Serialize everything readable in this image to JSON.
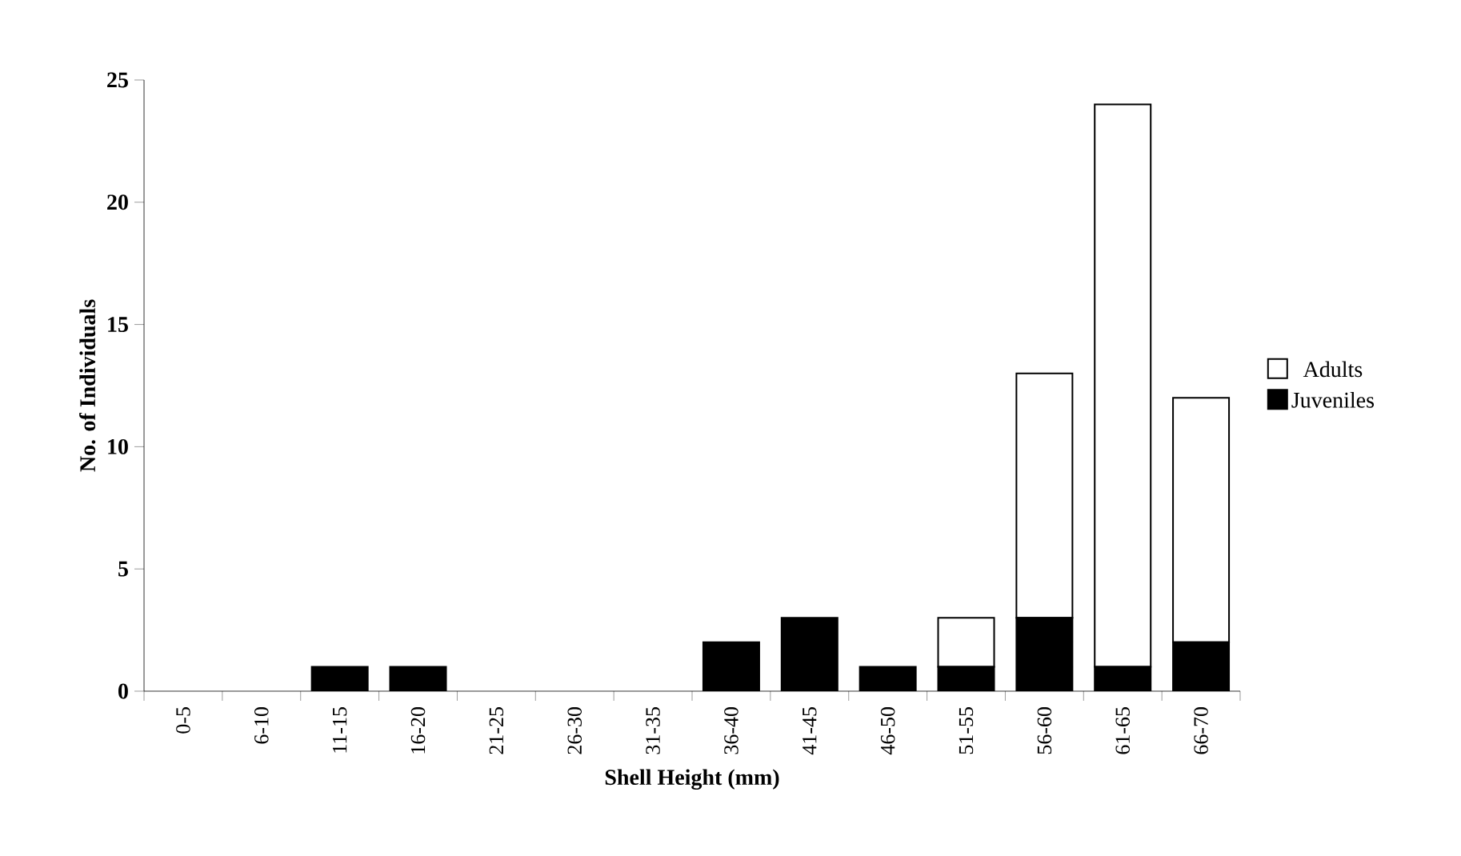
{
  "chart_data": {
    "type": "bar",
    "stacked": true,
    "xlabel": "Shell Height (mm)",
    "ylabel": "No. of Individuals",
    "categories": [
      "0-5",
      "6-10",
      "11-15",
      "16-20",
      "21-25",
      "26-30",
      "31-35",
      "36-40",
      "41-45",
      "46-50",
      "51-55",
      "56-60",
      "61-65",
      "66-70"
    ],
    "series": [
      {
        "name": "Juveniles",
        "color": "#000000",
        "values": [
          0,
          0,
          1,
          1,
          0,
          0,
          0,
          2,
          3,
          1,
          1,
          3,
          1,
          2
        ]
      },
      {
        "name": "Adults",
        "color": "#ffffff",
        "values": [
          0,
          0,
          0,
          0,
          0,
          0,
          0,
          0,
          0,
          0,
          2,
          10,
          23,
          10
        ]
      }
    ],
    "ylim": [
      0,
      25
    ],
    "yticks": [
      0,
      5,
      10,
      15,
      20,
      25
    ],
    "legend": "right"
  }
}
